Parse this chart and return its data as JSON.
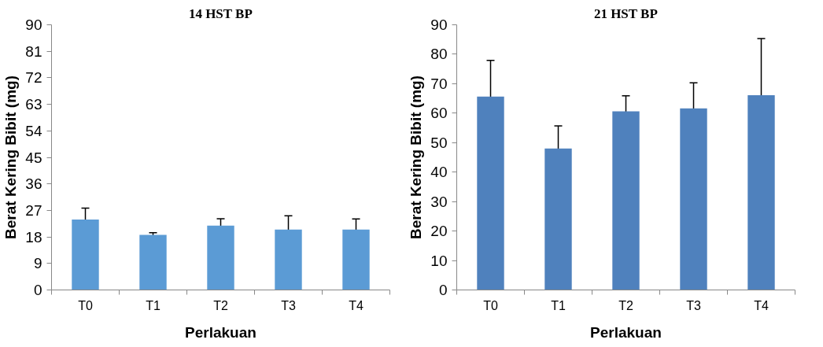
{
  "chart_data": [
    {
      "type": "bar",
      "title": "14 HST BP",
      "xlabel": "Perlakuan",
      "ylabel": "Berat Kering Bibit (mg)",
      "categories": [
        "T0",
        "T1",
        "T2",
        "T3",
        "T4"
      ],
      "values": [
        23.9,
        18.7,
        21.8,
        20.5,
        20.5
      ],
      "errors": [
        3.9,
        0.7,
        2.4,
        4.7,
        3.6
      ],
      "color": "#5b9bd5",
      "ylim": [
        0,
        90
      ],
      "yticks": [
        0,
        9,
        18,
        27,
        36,
        45,
        54,
        63,
        72,
        81,
        90
      ],
      "grid": false
    },
    {
      "type": "bar",
      "title": "21 HST BP",
      "xlabel": "Perlakuan",
      "ylabel": "Berat Kering Bibit (mg)",
      "categories": [
        "T0",
        "T1",
        "T2",
        "T3",
        "T4"
      ],
      "values": [
        65.6,
        48.0,
        60.6,
        61.6,
        66.1
      ],
      "errors": [
        12.3,
        7.7,
        5.3,
        8.7,
        19.2
      ],
      "color": "#4f81bd",
      "ylim": [
        0,
        90
      ],
      "yticks": [
        0,
        10,
        20,
        30,
        40,
        50,
        60,
        70,
        80,
        90
      ],
      "grid": false
    }
  ]
}
